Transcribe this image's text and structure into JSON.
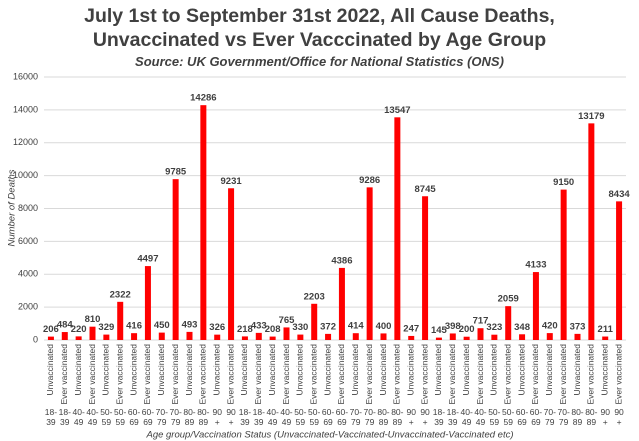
{
  "chart_data": {
    "type": "bar",
    "title": "July 1st to September 31st 2022, All Cause Deaths,\nUnvaccinated vs Ever Vacccinated by Age Group",
    "subtitle": "Source: UK Government/Office for National Statistics (ONS)",
    "y_label": "Number of Deaths",
    "x_label": "Age group/Vaccination Status (Unvaccinated-Vaccinated-Unvaccinated-Vaccinated etc)",
    "categories": [
      "Unvaccinated",
      "Ever vaccinated",
      "Unvaccinated",
      "Ever vaccinated",
      "Unvaccinated",
      "Ever vaccinated",
      "Unvaccinated",
      "Ever vaccinated",
      "Unvaccinated",
      "Ever vaccinated",
      "Unvaccinated",
      "Ever vaccinated",
      "Unvaccinated",
      "Ever vaccinated",
      "Unvaccinated",
      "Ever vaccinated",
      "Unvaccinated",
      "Ever vaccinated",
      "Unvaccinated",
      "Ever vaccinated",
      "Unvaccinated",
      "Ever vaccinated",
      "Unvaccinated",
      "Ever vaccinated",
      "Unvaccinated",
      "Ever vaccinated",
      "Unvaccinated",
      "Ever vaccinated",
      "Unvaccinated",
      "Ever vaccinated",
      "Unvaccinated",
      "Ever vaccinated",
      "Unvaccinated",
      "Ever vaccinated",
      "Unvaccinated",
      "Ever vaccinated",
      "Unvaccinated",
      "Ever vaccinated",
      "Unvaccinated",
      "Ever vaccinated",
      "Unvaccinated",
      "Ever vaccinated"
    ],
    "age_groups": [
      "18-39",
      "18-39",
      "40-49",
      "40-49",
      "50-59",
      "50-59",
      "60-69",
      "60-69",
      "70-79",
      "70-79",
      "80-89",
      "80-89",
      "90+",
      "90+",
      "18-39",
      "18-39",
      "40-49",
      "40-49",
      "50-59",
      "50-59",
      "60-69",
      "60-69",
      "70-79",
      "70-79",
      "80-89",
      "80-89",
      "90+",
      "90+",
      "18-39",
      "18-39",
      "40-49",
      "40-49",
      "50-59",
      "50-59",
      "60-69",
      "60-69",
      "70-79",
      "70-79",
      "80-89",
      "80-89",
      "90+",
      "90+"
    ],
    "values": [
      206,
      484,
      220,
      810,
      329,
      2322,
      416,
      4497,
      450,
      9785,
      493,
      14286,
      326,
      9231,
      218,
      433,
      208,
      765,
      330,
      2203,
      372,
      4386,
      414,
      9286,
      400,
      13547,
      247,
      8745,
      145,
      398,
      200,
      717,
      323,
      2059,
      348,
      4133,
      420,
      9150,
      373,
      13179,
      211,
      8434
    ],
    "color": "#ff0000",
    "ylim": [
      0,
      16000
    ],
    "yticks": [
      0,
      2000,
      4000,
      6000,
      8000,
      10000,
      12000,
      14000,
      16000
    ],
    "grid": true
  }
}
